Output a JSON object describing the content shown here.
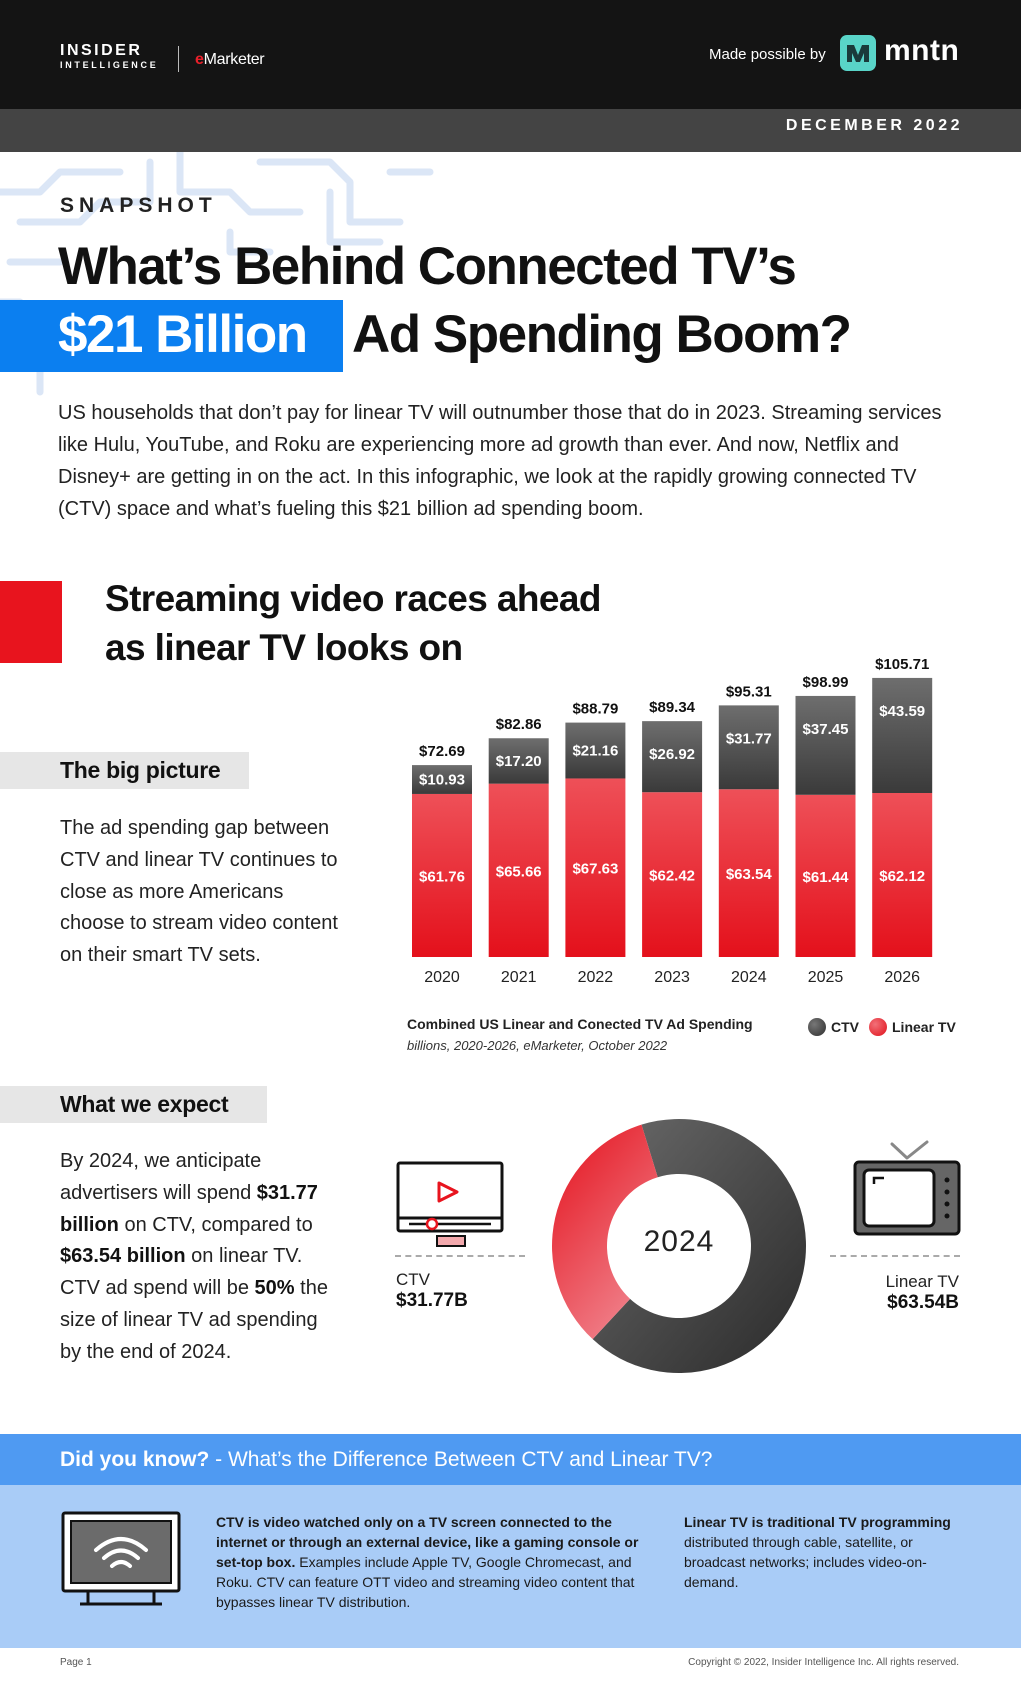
{
  "header": {
    "brand_top": "INSIDER",
    "brand_bottom": "INTELLIGENCE",
    "emarketer_prefix": "e",
    "emarketer_rest": "Marketer",
    "made_possible": "Made possible by",
    "sponsor": "mntn",
    "date": "DECEMBER 2022"
  },
  "hero": {
    "kicker": "SNAPSHOT",
    "title_line1": "What’s Behind Connected TV’s",
    "title_highlight": "$21 Billion",
    "title_line2_rest": "Ad Spending Boom?",
    "intro": "US households that don’t pay for linear TV will outnumber those that do in 2023. Streaming services like Hulu, YouTube, and Roku are experiencing more ad growth than ever. And now, Netflix and Disney+ are getting in on the act. In this infographic, we look at the rapidly growing connected TV (CTV) space and what’s fueling this $21 billion ad spending boom."
  },
  "section1": {
    "title_line1": "Streaming video races ahead",
    "title_line2": "as linear TV looks on",
    "tag": "The big picture",
    "body": "The ad spending gap between CTV and linear TV continues to close as more Americans choose to stream video content on their smart TV sets."
  },
  "chart_data": [
    {
      "type": "bar",
      "stacked": true,
      "categories": [
        "2020",
        "2021",
        "2022",
        "2023",
        "2024",
        "2025",
        "2026"
      ],
      "series": [
        {
          "name": "Linear TV",
          "values": [
            61.76,
            65.66,
            67.63,
            62.42,
            63.54,
            61.44,
            62.12
          ],
          "labels": [
            "$61.76",
            "$65.66",
            "$67.63",
            "$62.42",
            "$63.54",
            "$61.44",
            "$62.12"
          ]
        },
        {
          "name": "CTV",
          "values": [
            10.93,
            17.2,
            21.16,
            26.92,
            31.77,
            37.45,
            43.59
          ],
          "labels": [
            "$10.93",
            "$17.20",
            "$21.16",
            "$26.92",
            "$31.77",
            "$37.45",
            "$43.59"
          ]
        }
      ],
      "totals": [
        72.69,
        82.86,
        88.79,
        89.34,
        95.31,
        98.99,
        105.71
      ],
      "total_labels": [
        "$72.69",
        "$82.86",
        "$88.79",
        "$89.34",
        "$95.31",
        "$98.99",
        "$105.71"
      ],
      "title": "Combined US Linear and Conected TV Ad Spending",
      "subtitle": "billions, 2020-2026, eMarketer, October 2022",
      "legend_position": "bottom-right",
      "ylim": [
        0,
        110
      ],
      "colors": {
        "CTV": "#4a4a4a",
        "Linear TV": "#e8141e"
      }
    },
    {
      "type": "pie",
      "donut": true,
      "center_label": "2024",
      "categories": [
        "CTV",
        "Linear TV"
      ],
      "values": [
        31.77,
        63.54
      ],
      "colors": {
        "CTV": "#4a4a4a",
        "Linear TV": "#e8141e"
      }
    }
  ],
  "section2": {
    "tag": "What we expect",
    "body_parts": [
      {
        "t": "By 2024, we anticipate advertisers will spend ",
        "b": false
      },
      {
        "t": "$31.77 billion",
        "b": true
      },
      {
        "t": " on CTV, compared to ",
        "b": false
      },
      {
        "t": "$63.54 billion",
        "b": true
      },
      {
        "t": " on linear TV. CTV ad spend will be ",
        "b": false
      },
      {
        "t": "50%",
        "b": true
      },
      {
        "t": " the size of linear TV ad spending by the end of 2024.",
        "b": false
      }
    ],
    "ctv_label": "CTV",
    "ctv_value": "$31.77B",
    "linear_label": "Linear TV",
    "linear_value": "$63.54B"
  },
  "did_you_know": {
    "lead": "Did you know?",
    "question": " -  What’s the Difference Between CTV and Linear TV?",
    "ctv_bold": "CTV is video watched only on a TV screen connected to the internet or through an external device, like a gaming console or set-top box.",
    "ctv_rest": " Examples include Apple TV, Google Chromecast, and Roku. CTV can feature OTT video and streaming video content that bypasses linear TV distribution.",
    "linear_bold": "Linear TV is traditional TV programming",
    "linear_rest": " distributed through cable, satellite, or broadcast networks; includes video-on-demand."
  },
  "footer": {
    "page": "Page 1",
    "copyright": "Copyright © 2022, Insider Intelligence Inc. All rights reserved."
  }
}
